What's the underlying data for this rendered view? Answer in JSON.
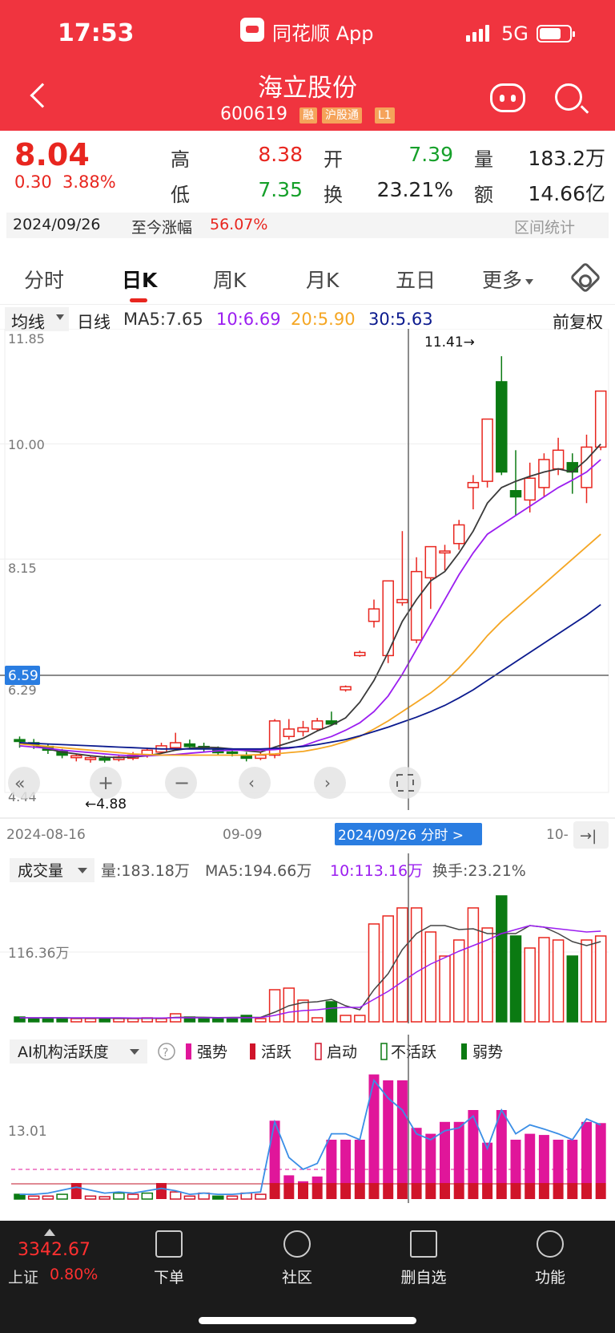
{
  "status": {
    "time": "17:53",
    "app": "同花顺 App",
    "network": "5G"
  },
  "header": {
    "name": "海立股份",
    "code": "600619",
    "tags": [
      "融",
      "沪股通",
      "L1"
    ]
  },
  "quote": {
    "price": "8.04",
    "change": "0.30",
    "change_pct": "3.88%",
    "high_label": "高",
    "high": "8.38",
    "open_label": "开",
    "open": "7.39",
    "vol_label": "量",
    "volume": "183.2万",
    "low_label": "低",
    "low": "7.35",
    "turnover_label": "换",
    "turnover": "23.21%",
    "amount_label": "额",
    "amount": "14.66亿",
    "date": "2024/09/26",
    "since_label": "至今涨幅",
    "since_value": "56.07%",
    "range_stat": "区间统计"
  },
  "tabs": [
    "分时",
    "日K",
    "周K",
    "月K",
    "五日",
    "更多"
  ],
  "ma": {
    "selector": "均线",
    "period": "日线",
    "ma5": "MA5:7.65",
    "ma10": "10:6.69",
    "ma20": "20:5.90",
    "ma30": "30:5.63",
    "adjust": "前复权"
  },
  "price_axis": {
    "top": "11.85",
    "l2": "10.00",
    "l3": "8.15",
    "l4": "6.29",
    "bottom": "4.44",
    "crosshair": "6.59"
  },
  "annotations": {
    "high": "11.41→",
    "low": "←4.88"
  },
  "dates": {
    "d1": "2024-08-16",
    "d2": "09-09",
    "d3": "10-",
    "cursor": "2024/09/26 分时 >"
  },
  "volume_panel": {
    "selector": "成交量",
    "vol": "量:183.18万",
    "ma5": "MA5:194.66万",
    "ma10": "10:113.16万",
    "turnover": "换手:23.21%",
    "axis": "116.36万"
  },
  "ai_panel": {
    "selector": "AI机构活跃度",
    "legend": [
      "强势",
      "活跃",
      "启动",
      "不活跃",
      "弱势"
    ],
    "axis": "13.01"
  },
  "bottom": {
    "index_value": "3342.67",
    "index_name": "上证",
    "index_pct": "0.80%",
    "nav": [
      "下单",
      "社区",
      "删自选",
      "功能"
    ]
  },
  "colors": {
    "up": "#e8261f",
    "down": "#0b7a12",
    "ma5": "#3a3a3a",
    "ma10": "#9b1ef0",
    "ma20": "#f5a623",
    "ma30": "#0b1a8e",
    "strong": "#e0169a"
  },
  "chart_data": {
    "type": "candlestick",
    "y_range": [
      4.44,
      11.85
    ],
    "candles": [
      [
        5.25,
        5.22,
        5.3,
        5.12
      ],
      [
        5.2,
        5.17,
        5.26,
        5.1
      ],
      [
        5.14,
        5.08,
        5.18,
        5.02
      ],
      [
        5.06,
        5.0,
        5.1,
        4.95
      ],
      [
        4.96,
        4.99,
        5.02,
        4.9
      ],
      [
        4.93,
        4.96,
        5.0,
        4.88
      ],
      [
        4.95,
        4.92,
        4.99,
        4.88
      ],
      [
        4.93,
        4.97,
        5.01,
        4.9
      ],
      [
        4.95,
        5.0,
        5.05,
        4.92
      ],
      [
        5.0,
        5.08,
        5.12,
        4.96
      ],
      [
        5.05,
        5.15,
        5.2,
        5.02
      ],
      [
        5.12,
        5.2,
        5.36,
        5.1
      ],
      [
        5.18,
        5.14,
        5.25,
        5.1
      ],
      [
        5.14,
        5.1,
        5.2,
        5.05
      ],
      [
        5.08,
        5.04,
        5.14,
        5.0
      ],
      [
        5.05,
        5.03,
        5.1,
        4.98
      ],
      [
        5.0,
        4.95,
        5.05,
        4.9
      ],
      [
        4.95,
        5.0,
        5.05,
        4.92
      ],
      [
        5.0,
        5.55,
        5.58,
        4.95
      ],
      [
        5.3,
        5.42,
        5.58,
        5.25
      ],
      [
        5.38,
        5.44,
        5.55,
        5.3
      ],
      [
        5.42,
        5.55,
        5.6,
        5.38
      ],
      [
        5.55,
        5.5,
        5.7,
        5.48
      ],
      [
        6.05,
        6.1,
        6.12,
        6.02
      ],
      [
        6.6,
        6.65,
        6.68,
        6.58
      ],
      [
        7.15,
        7.35,
        7.5,
        7.05
      ],
      [
        6.6,
        7.8,
        7.8,
        6.48
      ],
      [
        7.45,
        7.5,
        8.6,
        7.4
      ],
      [
        6.85,
        7.95,
        8.18,
        6.8
      ],
      [
        7.85,
        8.35,
        8.35,
        7.35
      ],
      [
        8.25,
        8.28,
        8.38,
        7.97
      ],
      [
        8.4,
        8.7,
        8.78,
        8.3
      ],
      [
        9.3,
        9.38,
        9.5,
        8.95
      ],
      [
        9.4,
        10.4,
        10.4,
        9.3
      ],
      [
        11.0,
        9.55,
        11.41,
        9.5
      ],
      [
        9.25,
        9.15,
        9.9,
        8.85
      ],
      [
        9.1,
        9.45,
        9.7,
        8.9
      ],
      [
        9.3,
        9.75,
        9.85,
        9.15
      ],
      [
        9.6,
        9.9,
        10.1,
        9.5
      ],
      [
        9.7,
        9.55,
        9.85,
        9.2
      ],
      [
        9.3,
        9.95,
        10.15,
        9.05
      ],
      [
        9.95,
        10.85,
        10.85,
        9.9
      ]
    ],
    "ma5": [
      5.2,
      5.16,
      5.1,
      5.05,
      5.02,
      4.99,
      4.97,
      4.96,
      4.97,
      4.99,
      5.03,
      5.08,
      5.11,
      5.13,
      5.12,
      5.1,
      5.07,
      5.05,
      5.13,
      5.2,
      5.27,
      5.39,
      5.48,
      5.6,
      5.85,
      6.2,
      6.65,
      7.15,
      7.5,
      7.8,
      7.95,
      8.25,
      8.6,
      9.05,
      9.3,
      9.4,
      9.48,
      9.55,
      9.6,
      9.55,
      9.75,
      10.0
    ],
    "ma10": [
      5.15,
      5.13,
      5.11,
      5.08,
      5.06,
      5.04,
      5.02,
      5.0,
      4.99,
      4.99,
      5.0,
      5.01,
      5.03,
      5.05,
      5.07,
      5.08,
      5.08,
      5.08,
      5.09,
      5.11,
      5.15,
      5.23,
      5.3,
      5.4,
      5.52,
      5.7,
      5.95,
      6.3,
      6.7,
      7.1,
      7.5,
      7.9,
      8.25,
      8.55,
      8.7,
      8.85,
      9.0,
      9.15,
      9.3,
      9.42,
      9.55,
      9.75
    ],
    "ma20": [
      5.18,
      5.16,
      5.14,
      5.12,
      5.1,
      5.08,
      5.06,
      5.04,
      5.02,
      5.01,
      5.0,
      5.0,
      5.0,
      5.0,
      5.0,
      5.0,
      5.0,
      5.01,
      5.02,
      5.04,
      5.06,
      5.1,
      5.15,
      5.22,
      5.3,
      5.42,
      5.55,
      5.7,
      5.85,
      6.0,
      6.18,
      6.4,
      6.65,
      6.92,
      7.15,
      7.35,
      7.55,
      7.75,
      7.95,
      8.15,
      8.35,
      8.55
    ],
    "ma30": [
      5.2,
      5.19,
      5.18,
      5.17,
      5.16,
      5.15,
      5.14,
      5.13,
      5.12,
      5.11,
      5.1,
      5.1,
      5.1,
      5.1,
      5.1,
      5.1,
      5.1,
      5.1,
      5.11,
      5.12,
      5.14,
      5.17,
      5.21,
      5.25,
      5.31,
      5.38,
      5.45,
      5.53,
      5.61,
      5.7,
      5.8,
      5.92,
      6.05,
      6.2,
      6.35,
      6.5,
      6.65,
      6.8,
      6.95,
      7.1,
      7.25,
      7.42
    ],
    "volume": [
      6,
      4,
      5,
      5,
      4,
      4,
      4,
      4,
      4,
      5,
      4,
      10,
      6,
      4,
      4,
      4,
      8,
      4,
      40,
      42,
      27,
      5,
      25,
      8,
      8,
      122,
      132,
      142,
      142,
      112,
      82,
      102,
      142,
      117,
      157,
      107,
      92,
      105,
      102,
      82,
      102,
      107
    ],
    "vol_ma5": [
      5,
      5,
      5,
      5,
      4.5,
      4.5,
      4.5,
      4.2,
      4.2,
      4.3,
      4.4,
      5.5,
      5.8,
      5.6,
      5.2,
      5.5,
      5.5,
      5.5,
      12,
      20,
      24,
      25,
      28,
      20,
      15,
      40,
      60,
      90,
      110,
      120,
      120,
      115,
      116,
      110,
      110,
      110,
      120,
      118,
      110,
      100,
      95,
      100
    ],
    "vol_ma10": [
      5,
      5,
      5,
      5,
      5,
      5,
      5,
      5,
      4.8,
      4.8,
      4.8,
      5,
      5,
      5,
      5,
      5,
      5,
      5.2,
      8,
      12,
      14,
      15,
      17,
      18,
      18,
      28,
      38,
      50,
      62,
      72,
      80,
      88,
      95,
      102,
      110,
      115,
      120,
      118,
      116,
      114,
      112,
      113
    ],
    "ai": [
      8,
      5,
      5,
      8,
      22,
      5,
      4,
      10,
      8,
      10,
      22,
      12,
      5,
      10,
      5,
      5,
      10,
      8,
      132,
      40,
      30,
      38,
      100,
      100,
      100,
      210,
      200,
      200,
      120,
      110,
      130,
      130,
      150,
      95,
      150,
      100,
      110,
      108,
      100,
      100,
      130,
      128
    ],
    "ai_line": [
      8,
      8,
      10,
      15,
      20,
      15,
      10,
      12,
      10,
      14,
      18,
      14,
      8,
      10,
      8,
      8,
      10,
      12,
      130,
      70,
      50,
      60,
      110,
      110,
      100,
      200,
      170,
      150,
      110,
      100,
      115,
      120,
      140,
      85,
      150,
      110,
      125,
      118,
      110,
      100,
      135,
      125
    ]
  }
}
